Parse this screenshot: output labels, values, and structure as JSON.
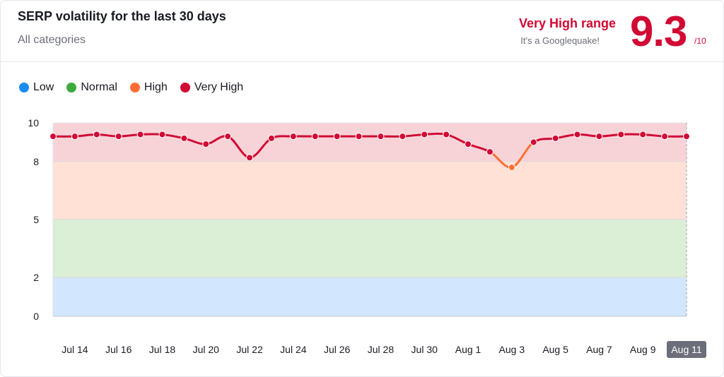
{
  "header": {
    "title": "SERP volatility for the last 30 days",
    "subtitle": "All categories",
    "range_label": "Very High range",
    "range_sub": "It’s a Googlequake!",
    "score": "9.3",
    "score_max": "/10"
  },
  "colors": {
    "low": "#1a8cf0",
    "normal": "#3cab3c",
    "high": "#ff6f31",
    "very_high": "#d10a34",
    "band_low": "#d2e7fe",
    "band_normal": "#dbeed6",
    "band_high": "#ffe1d6",
    "band_very_high": "#f7d3d8"
  },
  "legend": [
    {
      "label": "Low",
      "color": "#1a8cf0"
    },
    {
      "label": "Normal",
      "color": "#3cab3c"
    },
    {
      "label": "High",
      "color": "#ff6f31"
    },
    {
      "label": "Very High",
      "color": "#d10a34"
    }
  ],
  "chart_data": {
    "type": "line",
    "title": "SERP volatility for the last 30 days",
    "ylim": [
      0,
      10
    ],
    "yticks": [
      0,
      2,
      5,
      8,
      10
    ],
    "bands": [
      {
        "name": "Low",
        "from": 0,
        "to": 2
      },
      {
        "name": "Normal",
        "from": 2,
        "to": 5
      },
      {
        "name": "High",
        "from": 5,
        "to": 8
      },
      {
        "name": "Very High",
        "from": 8,
        "to": 10
      }
    ],
    "x": [
      "Jul 13",
      "Jul 14",
      "Jul 15",
      "Jul 16",
      "Jul 17",
      "Jul 18",
      "Jul 19",
      "Jul 20",
      "Jul 21",
      "Jul 22",
      "Jul 23",
      "Jul 24",
      "Jul 25",
      "Jul 26",
      "Jul 27",
      "Jul 28",
      "Jul 29",
      "Jul 30",
      "Jul 31",
      "Aug 1",
      "Aug 2",
      "Aug 3",
      "Aug 4",
      "Aug 5",
      "Aug 6",
      "Aug 7",
      "Aug 8",
      "Aug 9",
      "Aug 10",
      "Aug 11"
    ],
    "xtick_labels": [
      "Jul 14",
      "Jul 16",
      "Jul 18",
      "Jul 20",
      "Jul 22",
      "Jul 24",
      "Jul 26",
      "Jul 28",
      "Jul 30",
      "Aug 1",
      "Aug 3",
      "Aug 5",
      "Aug 7",
      "Aug 9",
      "Aug 11"
    ],
    "highlighted_x": "Aug 11",
    "values": [
      9.3,
      9.3,
      9.4,
      9.3,
      9.4,
      9.4,
      9.2,
      8.9,
      9.3,
      8.2,
      9.2,
      9.3,
      9.3,
      9.3,
      9.3,
      9.3,
      9.3,
      9.4,
      9.4,
      8.9,
      8.5,
      7.7,
      9.0,
      9.2,
      9.4,
      9.3,
      9.4,
      9.4,
      9.3,
      9.3
    ]
  }
}
